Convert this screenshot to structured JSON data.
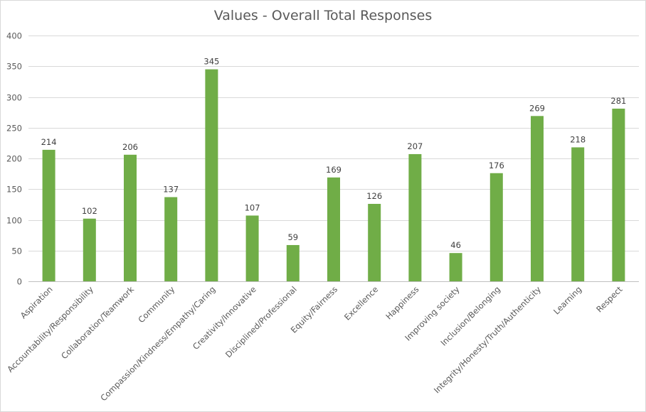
{
  "chart_data": {
    "type": "bar",
    "title": "Values - Overall Total Responses",
    "categories": [
      "Aspiration",
      "Accountability/Responsibility",
      "Collaboration/Teamwork",
      "Community",
      "Compassion/Kindness/Empathy/Caring",
      "Creativity/Innovative",
      "Disciplined/Professional",
      "Equity/Fairness",
      "Excellence",
      "Happiness",
      "Improving society",
      "Inclusion/Belonging",
      "Integrity/Honesty/Truth/Authenticity",
      "Learning",
      "Respect"
    ],
    "values": [
      214,
      102,
      206,
      137,
      345,
      107,
      59,
      169,
      126,
      207,
      46,
      176,
      269,
      218,
      281
    ],
    "xlabel": "",
    "ylabel": "",
    "ylim": [
      0,
      400
    ],
    "yticks": [
      0,
      50,
      100,
      150,
      200,
      250,
      300,
      350,
      400
    ],
    "grid": true,
    "legend": "none",
    "bar_color": "#70ad47"
  }
}
